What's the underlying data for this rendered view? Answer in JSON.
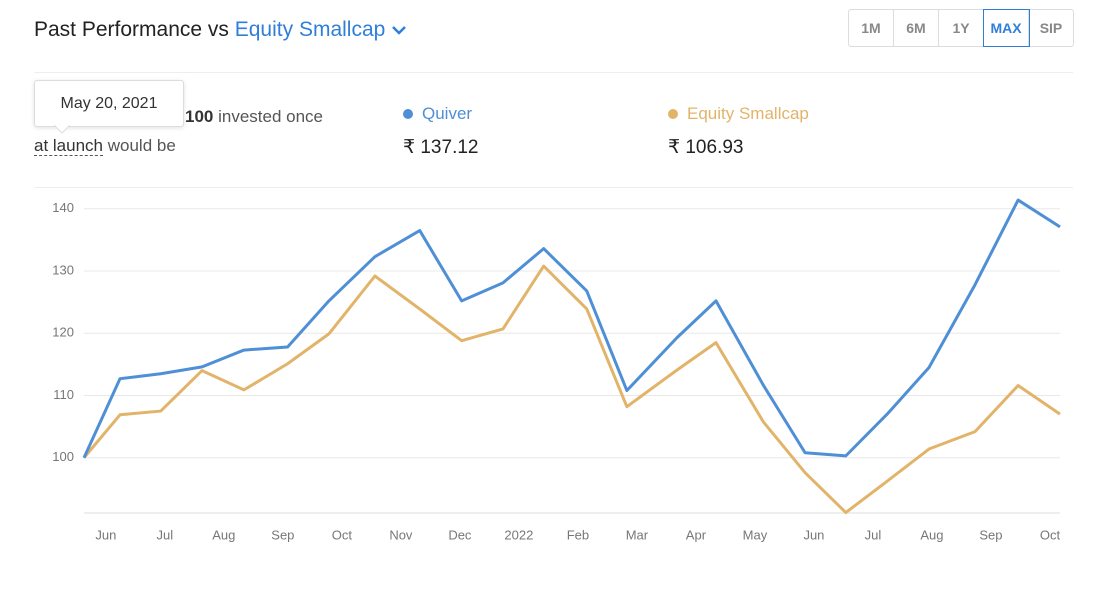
{
  "header": {
    "title": "Past Performance vs",
    "benchmark": "Equity Smallcap"
  },
  "ranges": {
    "options": [
      "1M",
      "6M",
      "1Y",
      "MAX",
      "SIP"
    ],
    "selected": "MAX"
  },
  "summary": {
    "tooltip": "May 20, 2021",
    "amount": "100",
    "line1": "invested once",
    "link": "at launch",
    "line2": "would be"
  },
  "chart_data": {
    "type": "line",
    "x": [
      0.63,
      1.24,
      1.93,
      2.63,
      3.34,
      4.08,
      4.78,
      5.56,
      6.32,
      7.03,
      7.73,
      8.42,
      9.15,
      9.83,
      10.68,
      11.34,
      12.14,
      12.85,
      13.54,
      14.25,
      14.95,
      15.73,
      16.46,
      17.17
    ],
    "series": [
      {
        "name": "Quiver",
        "color": "#4f8fd6",
        "latest": "₹ 137.12",
        "values": [
          100,
          112.7,
          113.5,
          114.6,
          117.3,
          117.8,
          125.2,
          132.3,
          136.5,
          125.2,
          128.1,
          133.6,
          126.8,
          110.8,
          119.3,
          125.2,
          111.7,
          100.8,
          100.3,
          107.1,
          114.5,
          127.8,
          141.4,
          137.1
        ]
      },
      {
        "name": "Equity Smallcap",
        "color": "#e2b46a",
        "latest": "₹ 106.93",
        "values": [
          100,
          106.9,
          107.5,
          114.0,
          110.9,
          115.1,
          119.9,
          129.2,
          123.9,
          118.8,
          120.7,
          130.8,
          123.9,
          108.2,
          114.1,
          118.5,
          105.8,
          97.6,
          91.2,
          96.3,
          101.4,
          104.2,
          111.6,
          107.0
        ]
      }
    ],
    "xlim": [
      0.63,
      17.17
    ],
    "xticks": [
      {
        "value": 1,
        "label": "Jun"
      },
      {
        "value": 2,
        "label": "Jul"
      },
      {
        "value": 3,
        "label": "Aug"
      },
      {
        "value": 4,
        "label": "Sep"
      },
      {
        "value": 5,
        "label": "Oct"
      },
      {
        "value": 6,
        "label": "Nov"
      },
      {
        "value": 7,
        "label": "Dec"
      },
      {
        "value": 8,
        "label": "2022"
      },
      {
        "value": 9,
        "label": "Feb"
      },
      {
        "value": 10,
        "label": "Mar"
      },
      {
        "value": 11,
        "label": "Apr"
      },
      {
        "value": 12,
        "label": "May"
      },
      {
        "value": 13,
        "label": "Jun"
      },
      {
        "value": 14,
        "label": "Jul"
      },
      {
        "value": 15,
        "label": "Aug"
      },
      {
        "value": 16,
        "label": "Sep"
      },
      {
        "value": 17,
        "label": "Oct"
      }
    ],
    "ylim": [
      90.8,
      143.5
    ],
    "yticks": [
      100,
      110,
      120,
      130,
      140
    ],
    "grid": true
  }
}
